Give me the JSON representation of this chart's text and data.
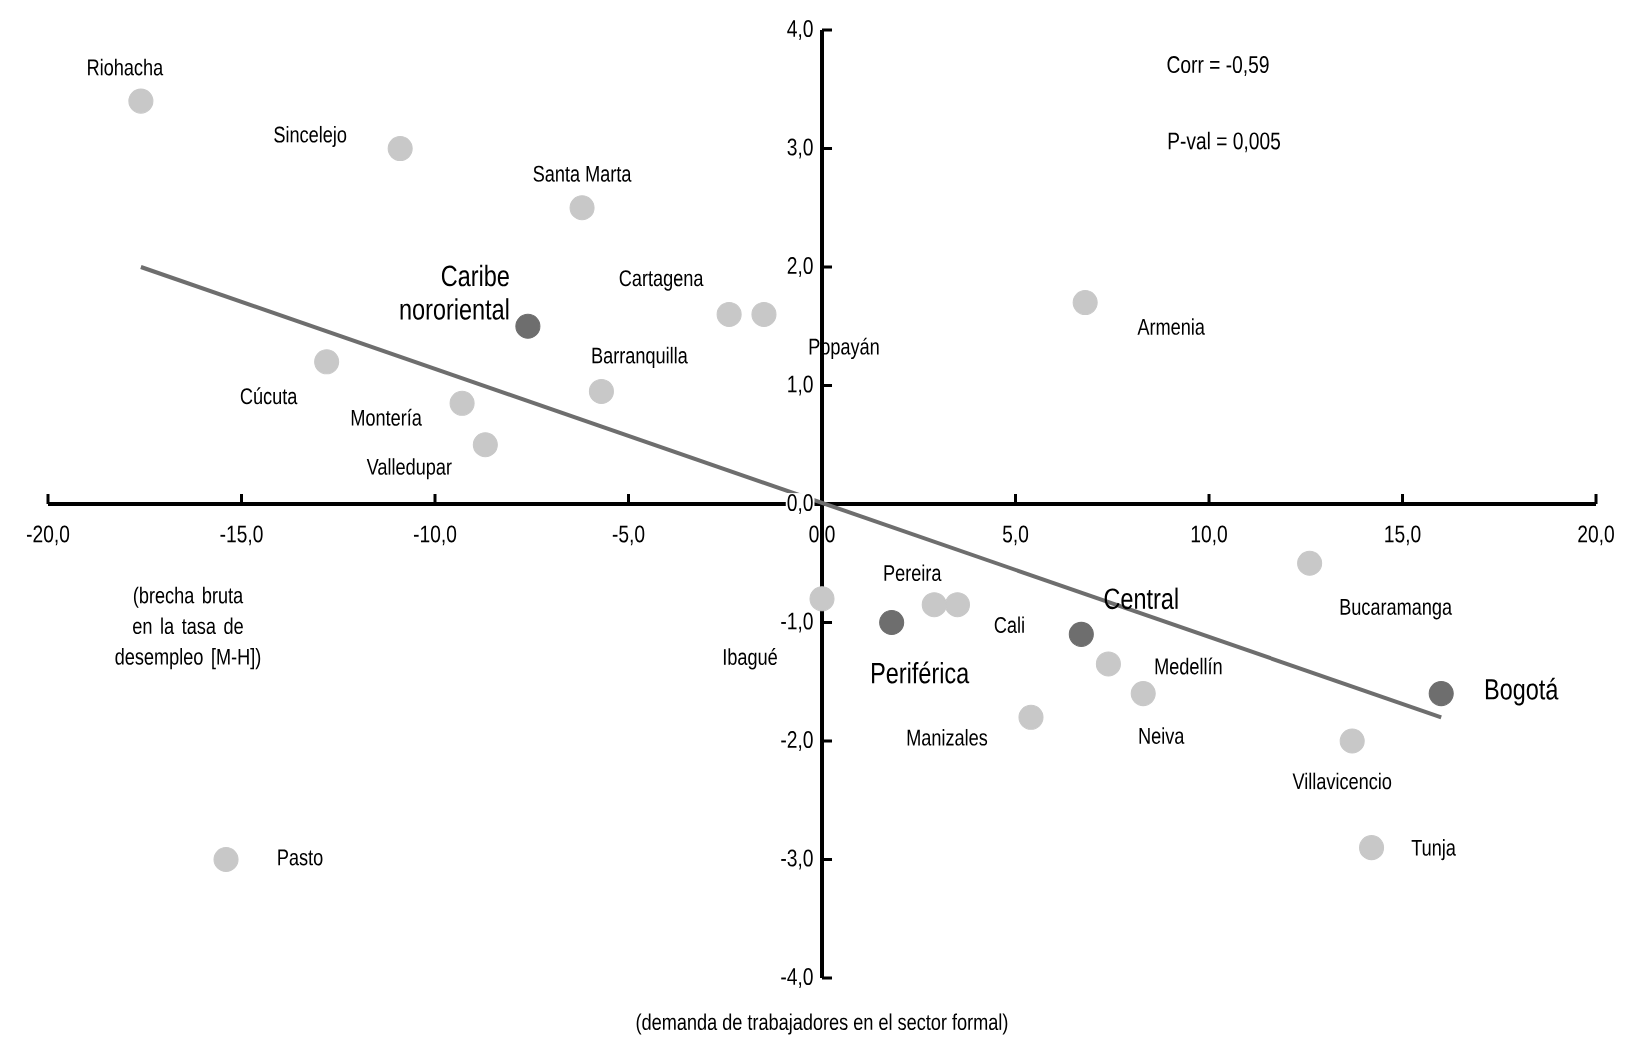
{
  "chart_data": {
    "type": "scatter",
    "xlabel": "(demanda de trabajadores en el sector formal)",
    "ylabel": "(brecha bruta en la tasa de desempleo [M-H])",
    "marker": "circle",
    "xlim": [
      -20,
      20
    ],
    "ylim": [
      -4,
      4
    ],
    "xticks": [
      {
        "value": -20,
        "label": "-20,0"
      },
      {
        "value": -15,
        "label": "-15,0"
      },
      {
        "value": -10,
        "label": "-10,0"
      },
      {
        "value": -5,
        "label": "-5,0"
      },
      {
        "value": 0,
        "label": "0,0"
      },
      {
        "value": 5,
        "label": "5,0"
      },
      {
        "value": 10,
        "label": "10,0"
      },
      {
        "value": 15,
        "label": "15,0"
      },
      {
        "value": 20,
        "label": "20,0"
      }
    ],
    "yticks": [
      {
        "value": -4,
        "label": "-4,0"
      },
      {
        "value": -3,
        "label": "-3,0"
      },
      {
        "value": -2,
        "label": "-2,0"
      },
      {
        "value": -1,
        "label": "-1,0"
      },
      {
        "value": 0,
        "label": "0,0"
      },
      {
        "value": 1,
        "label": "1,0"
      },
      {
        "value": 2,
        "label": "2,0"
      },
      {
        "value": 3,
        "label": "3,0"
      },
      {
        "value": 4,
        "label": "4,0"
      }
    ],
    "series": [
      {
        "type": "scatter",
        "color": "#c8c8c8",
        "x": [
          -17.6,
          -10.9,
          -6.2,
          -2.4,
          -1.5,
          -5.7,
          -12.8,
          -9.3,
          -8.7,
          6.8,
          0.0,
          2.9,
          3.5,
          7.4,
          8.3,
          5.4,
          12.6,
          13.7,
          14.2,
          -15.4
        ],
        "values": [
          3.4,
          3.0,
          2.5,
          1.6,
          1.6,
          0.95,
          1.2,
          0.85,
          0.5,
          1.7,
          -0.8,
          -0.85,
          -0.85,
          -1.35,
          -1.6,
          -1.8,
          -0.5,
          -2.0,
          -2.9,
          -3.0
        ]
      },
      {
        "type": "scatter",
        "color": "#6e6e6e",
        "x": [
          -7.6,
          1.8,
          6.7,
          16.0
        ],
        "values": [
          1.5,
          -1.0,
          -1.1,
          -1.6
        ]
      },
      {
        "type": "line",
        "marker": "none",
        "color": "#6e6e6e",
        "x": [
          -17.6,
          16.0
        ],
        "values": [
          2.0,
          -1.8
        ]
      }
    ],
    "annotations": [
      "Corr =  -0,59",
      "P-val = 0,005",
      {
        "text": "Riohacha",
        "x": -17.6,
        "y": 3.4
      },
      {
        "text": "Sincelejo",
        "x": -10.9,
        "y": 3.0
      },
      {
        "text": "Santa Marta",
        "x": -6.2,
        "y": 2.5
      },
      {
        "text": "Cartagena",
        "x": -2.4,
        "y": 1.6
      },
      {
        "text": "Popayán",
        "x": -1.5,
        "y": 1.6
      },
      {
        "text": "Barranquilla",
        "x": -5.7,
        "y": 0.95
      },
      {
        "text": "Cúcuta",
        "x": -12.8,
        "y": 1.2
      },
      {
        "text": "Montería",
        "x": -9.3,
        "y": 0.85
      },
      {
        "text": "Valledupar",
        "x": -8.7,
        "y": 0.5
      },
      {
        "text": "Armenia",
        "x": 6.8,
        "y": 1.7
      },
      {
        "text": "Ibagué",
        "x": 0.0,
        "y": -0.8
      },
      {
        "text": "Pereira",
        "x": 2.9,
        "y": -0.85
      },
      {
        "text": "Cali",
        "x": 3.5,
        "y": -0.85
      },
      {
        "text": "Medellín",
        "x": 7.4,
        "y": -1.35
      },
      {
        "text": "Neiva",
        "x": 8.3,
        "y": -1.6
      },
      {
        "text": "Manizales",
        "x": 5.4,
        "y": -1.8
      },
      {
        "text": "Bucaramanga",
        "x": 12.6,
        "y": -0.5
      },
      {
        "text": "Villavicencio",
        "x": 13.7,
        "y": -2.0
      },
      {
        "text": "Tunja",
        "x": 14.2,
        "y": -2.9
      },
      {
        "text": "Pasto",
        "x": -15.4,
        "y": -3.0
      },
      {
        "text": "Caribe nororiental",
        "x": -7.6,
        "y": 1.5
      },
      {
        "text": "Periférica",
        "x": 1.8,
        "y": -1.0
      },
      {
        "text": "Central",
        "x": 6.7,
        "y": -1.1
      },
      {
        "text": "Bogotá",
        "x": 16.0,
        "y": -1.6
      }
    ]
  }
}
